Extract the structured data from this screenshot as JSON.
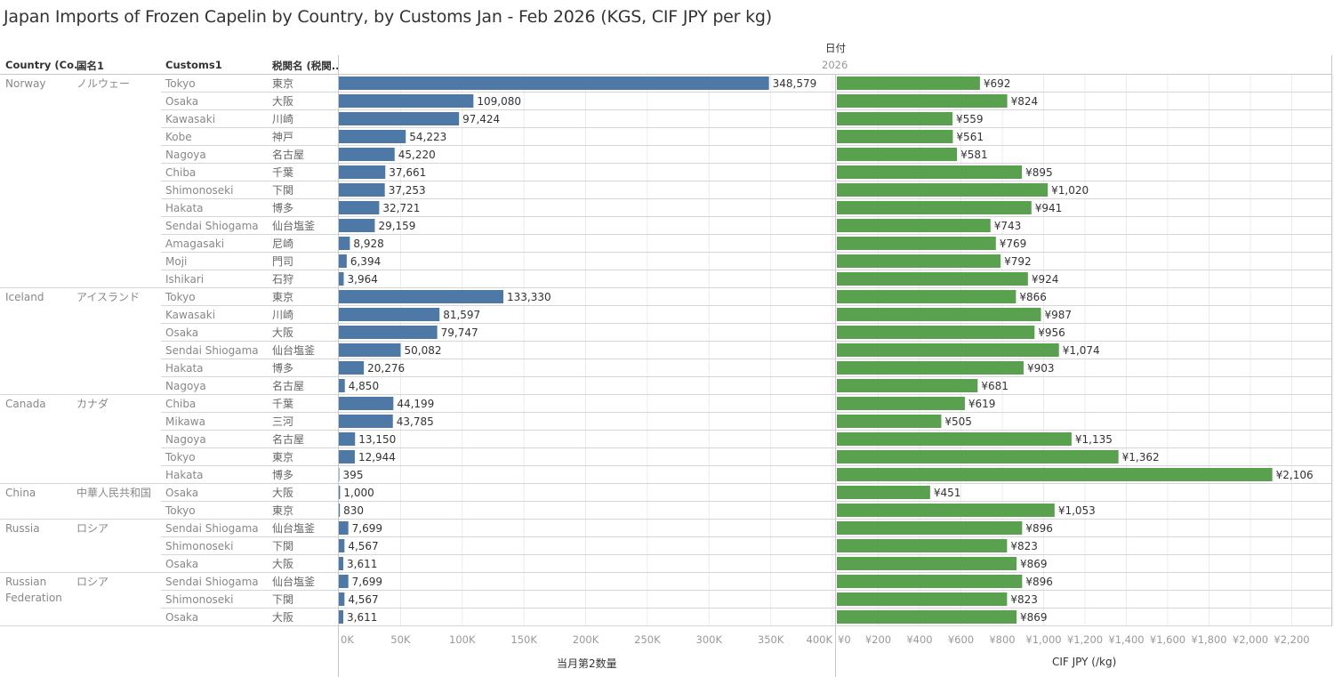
{
  "title": "Japan Imports of Frozen Capelin by Country, by Customs Jan - Feb 2026 (KGS, CIF JPY per kg)",
  "headers": {
    "country": "Country (Co..",
    "country_jp": "国名1",
    "customs": "Customs1",
    "customs_jp": "税関名 (税関..",
    "date_label": "日付",
    "year": "2026"
  },
  "chart_data": {
    "type": "bar",
    "title": "Japan Imports of Frozen Capelin by Country, by Customs Jan - Feb 2026 (KGS, CIF JPY per kg)",
    "orientation": "horizontal",
    "groups": [
      {
        "country": "Norway",
        "country_jp": "ノルウェー",
        "rows": [
          {
            "customs": "Tokyo",
            "customs_jp": "東京",
            "qty": 348579,
            "qty_label": "348,579",
            "cif": 692,
            "cif_label": "¥692"
          },
          {
            "customs": "Osaka",
            "customs_jp": "大阪",
            "qty": 109080,
            "qty_label": "109,080",
            "cif": 824,
            "cif_label": "¥824"
          },
          {
            "customs": "Kawasaki",
            "customs_jp": "川崎",
            "qty": 97424,
            "qty_label": "97,424",
            "cif": 559,
            "cif_label": "¥559"
          },
          {
            "customs": "Kobe",
            "customs_jp": "神戸",
            "qty": 54223,
            "qty_label": "54,223",
            "cif": 561,
            "cif_label": "¥561"
          },
          {
            "customs": "Nagoya",
            "customs_jp": "名古屋",
            "qty": 45220,
            "qty_label": "45,220",
            "cif": 581,
            "cif_label": "¥581"
          },
          {
            "customs": "Chiba",
            "customs_jp": "千葉",
            "qty": 37661,
            "qty_label": "37,661",
            "cif": 895,
            "cif_label": "¥895"
          },
          {
            "customs": "Shimonoseki",
            "customs_jp": "下関",
            "qty": 37253,
            "qty_label": "37,253",
            "cif": 1020,
            "cif_label": "¥1,020"
          },
          {
            "customs": "Hakata",
            "customs_jp": "博多",
            "qty": 32721,
            "qty_label": "32,721",
            "cif": 941,
            "cif_label": "¥941"
          },
          {
            "customs": "Sendai Shiogama",
            "customs_jp": "仙台塩釜",
            "qty": 29159,
            "qty_label": "29,159",
            "cif": 743,
            "cif_label": "¥743"
          },
          {
            "customs": "Amagasaki",
            "customs_jp": "尼崎",
            "qty": 8928,
            "qty_label": "8,928",
            "cif": 769,
            "cif_label": "¥769"
          },
          {
            "customs": "Moji",
            "customs_jp": "門司",
            "qty": 6394,
            "qty_label": "6,394",
            "cif": 792,
            "cif_label": "¥792"
          },
          {
            "customs": "Ishikari",
            "customs_jp": "石狩",
            "qty": 3964,
            "qty_label": "3,964",
            "cif": 924,
            "cif_label": "¥924"
          }
        ]
      },
      {
        "country": "Iceland",
        "country_jp": "アイスランド",
        "rows": [
          {
            "customs": "Tokyo",
            "customs_jp": "東京",
            "qty": 133330,
            "qty_label": "133,330",
            "cif": 866,
            "cif_label": "¥866"
          },
          {
            "customs": "Kawasaki",
            "customs_jp": "川崎",
            "qty": 81597,
            "qty_label": "81,597",
            "cif": 987,
            "cif_label": "¥987"
          },
          {
            "customs": "Osaka",
            "customs_jp": "大阪",
            "qty": 79747,
            "qty_label": "79,747",
            "cif": 956,
            "cif_label": "¥956"
          },
          {
            "customs": "Sendai Shiogama",
            "customs_jp": "仙台塩釜",
            "qty": 50082,
            "qty_label": "50,082",
            "cif": 1074,
            "cif_label": "¥1,074"
          },
          {
            "customs": "Hakata",
            "customs_jp": "博多",
            "qty": 20276,
            "qty_label": "20,276",
            "cif": 903,
            "cif_label": "¥903"
          },
          {
            "customs": "Nagoya",
            "customs_jp": "名古屋",
            "qty": 4850,
            "qty_label": "4,850",
            "cif": 681,
            "cif_label": "¥681"
          }
        ]
      },
      {
        "country": "Canada",
        "country_jp": "カナダ",
        "rows": [
          {
            "customs": "Chiba",
            "customs_jp": "千葉",
            "qty": 44199,
            "qty_label": "44,199",
            "cif": 619,
            "cif_label": "¥619"
          },
          {
            "customs": "Mikawa",
            "customs_jp": "三河",
            "qty": 43785,
            "qty_label": "43,785",
            "cif": 505,
            "cif_label": "¥505"
          },
          {
            "customs": "Nagoya",
            "customs_jp": "名古屋",
            "qty": 13150,
            "qty_label": "13,150",
            "cif": 1135,
            "cif_label": "¥1,135"
          },
          {
            "customs": "Tokyo",
            "customs_jp": "東京",
            "qty": 12944,
            "qty_label": "12,944",
            "cif": 1362,
            "cif_label": "¥1,362"
          },
          {
            "customs": "Hakata",
            "customs_jp": "博多",
            "qty": 395,
            "qty_label": "395",
            "cif": 2106,
            "cif_label": "¥2,106"
          }
        ]
      },
      {
        "country": "China",
        "country_jp": "中華人民共和国",
        "rows": [
          {
            "customs": "Osaka",
            "customs_jp": "大阪",
            "qty": 1000,
            "qty_label": "1,000",
            "cif": 451,
            "cif_label": "¥451"
          },
          {
            "customs": "Tokyo",
            "customs_jp": "東京",
            "qty": 830,
            "qty_label": "830",
            "cif": 1053,
            "cif_label": "¥1,053"
          }
        ]
      },
      {
        "country": "Russia",
        "country_jp": "ロシア",
        "rows": [
          {
            "customs": "Sendai Shiogama",
            "customs_jp": "仙台塩釜",
            "qty": 7699,
            "qty_label": "7,699",
            "cif": 896,
            "cif_label": "¥896"
          },
          {
            "customs": "Shimonoseki",
            "customs_jp": "下関",
            "qty": 4567,
            "qty_label": "4,567",
            "cif": 823,
            "cif_label": "¥823"
          },
          {
            "customs": "Osaka",
            "customs_jp": "大阪",
            "qty": 3611,
            "qty_label": "3,611",
            "cif": 869,
            "cif_label": "¥869"
          }
        ]
      },
      {
        "country": "Russian Federation",
        "country_lines": [
          "Russian",
          "Federation"
        ],
        "country_jp": "ロシア",
        "rows": [
          {
            "customs": "Sendai Shiogama",
            "customs_jp": "仙台塩釜",
            "qty": 7699,
            "qty_label": "7,699",
            "cif": 896,
            "cif_label": "¥896"
          },
          {
            "customs": "Shimonoseki",
            "customs_jp": "下関",
            "qty": 4567,
            "qty_label": "4,567",
            "cif": 823,
            "cif_label": "¥823"
          },
          {
            "customs": "Osaka",
            "customs_jp": "大阪",
            "qty": 3611,
            "qty_label": "3,611",
            "cif": 869,
            "cif_label": "¥869"
          }
        ]
      }
    ],
    "axes": [
      {
        "name": "qty",
        "xlabel": "当月第2数量",
        "xlim": [
          0,
          400000
        ],
        "ticks": [
          0,
          50000,
          100000,
          150000,
          200000,
          250000,
          300000,
          350000,
          400000
        ],
        "tick_labels": [
          "0K",
          "50K",
          "100K",
          "150K",
          "200K",
          "250K",
          "300K",
          "350K",
          "400K"
        ],
        "color": "#4e79a7"
      },
      {
        "name": "cif",
        "xlabel": "CIF JPY (/kg)",
        "xlim": [
          0,
          2400
        ],
        "ticks": [
          0,
          200,
          400,
          600,
          800,
          1000,
          1200,
          1400,
          1600,
          1800,
          2000,
          2200
        ],
        "tick_labels": [
          "¥0",
          "¥200",
          "¥400",
          "¥600",
          "¥800",
          "¥1,000",
          "¥1,200",
          "¥1,400",
          "¥1,600",
          "¥1,800",
          "¥2,000",
          "¥2,200"
        ],
        "color": "#59a14f"
      }
    ],
    "grid": true,
    "legend": "none"
  }
}
